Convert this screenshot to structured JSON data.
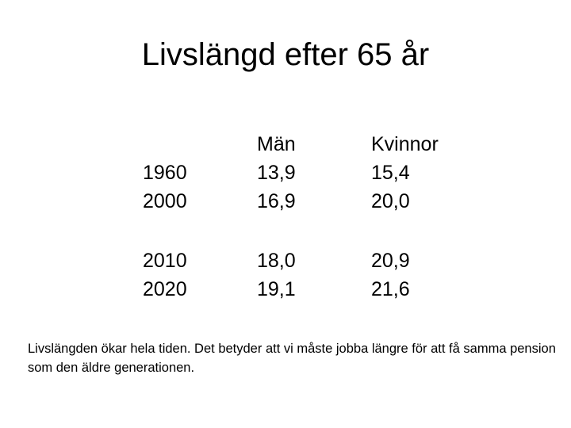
{
  "title": "Livslängd efter 65 år",
  "table": {
    "header": [
      "Män",
      "Kvinnor"
    ],
    "rows": [
      [
        "1960",
        "13,9",
        "15,4"
      ],
      [
        "2000",
        "16,9",
        "20,0"
      ],
      [
        "2010",
        "18,0",
        "20,9"
      ],
      [
        "2020",
        "19,1",
        "21,6"
      ]
    ]
  },
  "caption": "Livslängden ökar hela tiden. Det betyder att vi måste jobba längre för att få samma pension som den äldre generationen."
}
